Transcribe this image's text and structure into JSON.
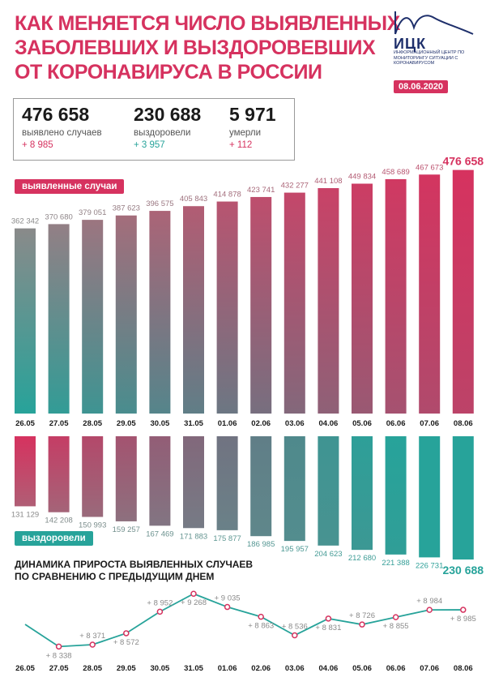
{
  "header": {
    "title_line1": "КАК МЕНЯЕТСЯ ЧИСЛО ВЫЯВЛЕННЫХ",
    "title_line2": "ЗАБОЛЕВШИХ И ВЫЗДОРОВЕВШИХ",
    "title_line3": "ОТ КОРОНАВИРУСА В РОССИИ",
    "logo_name": "ИЦК",
    "logo_subtitle": "ИНФОРМАЦИОННЫЙ ЦЕНТР ПО МОНИТОРИНГУ СИТУАЦИИ С КОРОНАВИРУСОМ",
    "date": "08.06.2020"
  },
  "stats": {
    "cases": {
      "value": "476 658",
      "label": "выявлено случаев",
      "delta": "+ 8 985"
    },
    "recovered": {
      "value": "230 688",
      "label": "выздоровели",
      "delta": "+ 3 957"
    },
    "deaths": {
      "value": "5 971",
      "label": "умерли",
      "delta": "+ 112"
    }
  },
  "colors": {
    "accent": "#d6325f",
    "teal": "#27a39a",
    "gray": "#8a8a8a",
    "dark": "#1a1a1a"
  },
  "chart_data": [
    {
      "type": "bar",
      "title": "выявленные случаи",
      "categories": [
        "26.05",
        "27.05",
        "28.05",
        "29.05",
        "30.05",
        "31.05",
        "01.06",
        "02.06",
        "03.06",
        "04.06",
        "05.06",
        "06.06",
        "07.06",
        "08.06"
      ],
      "values": [
        362342,
        370680,
        379051,
        387623,
        396575,
        405843,
        414878,
        423741,
        432277,
        441108,
        449834,
        458689,
        467673,
        476658
      ],
      "labels": [
        "362 342",
        "370 680",
        "379 051",
        "387 623",
        "396 575",
        "405 843",
        "414 878",
        "423 741",
        "432 277",
        "441 108",
        "449 834",
        "458 689",
        "467 673",
        "476 658"
      ]
    },
    {
      "type": "bar",
      "title": "выздоровели",
      "categories": [
        "26.05",
        "27.05",
        "28.05",
        "29.05",
        "30.05",
        "31.05",
        "01.06",
        "02.06",
        "03.06",
        "04.06",
        "05.06",
        "06.06",
        "07.06",
        "08.06"
      ],
      "values": [
        131129,
        142208,
        150993,
        159257,
        167469,
        171883,
        175877,
        186985,
        195957,
        204623,
        212680,
        221388,
        226731,
        230688
      ],
      "labels": [
        "131 129",
        "142 208",
        "150 993",
        "159 257",
        "167 469",
        "171 883",
        "175 877",
        "186 985",
        "195 957",
        "204 623",
        "212 680",
        "221 388",
        "226 731",
        "230 688"
      ]
    },
    {
      "type": "line",
      "title_line1": "ДИНАМИКА ПРИРОСТА ВЫЯВЛЕННЫХ СЛУЧАЕВ",
      "title_line2": "ПО СРАВНЕНИЮ С ПРЕДЫДУЩИМ ДНЕМ",
      "categories": [
        "26.05",
        "27.05",
        "28.05",
        "29.05",
        "30.05",
        "31.05",
        "01.06",
        "02.06",
        "03.06",
        "04.06",
        "05.06",
        "06.06",
        "07.06",
        "08.06"
      ],
      "values": [
        null,
        8338,
        8371,
        8572,
        8952,
        9268,
        9035,
        8863,
        8536,
        8831,
        8726,
        8855,
        8984,
        8985
      ],
      "labels": [
        "",
        "+ 8 338",
        "+ 8 371",
        "+ 8 572",
        "+ 8 952",
        "+ 9 268",
        "+ 9 035",
        "+ 8 863",
        "+ 8 536",
        "+ 8 831",
        "+ 8 726",
        "+ 8 855",
        "+ 8 984",
        "+ 8 985"
      ]
    }
  ]
}
